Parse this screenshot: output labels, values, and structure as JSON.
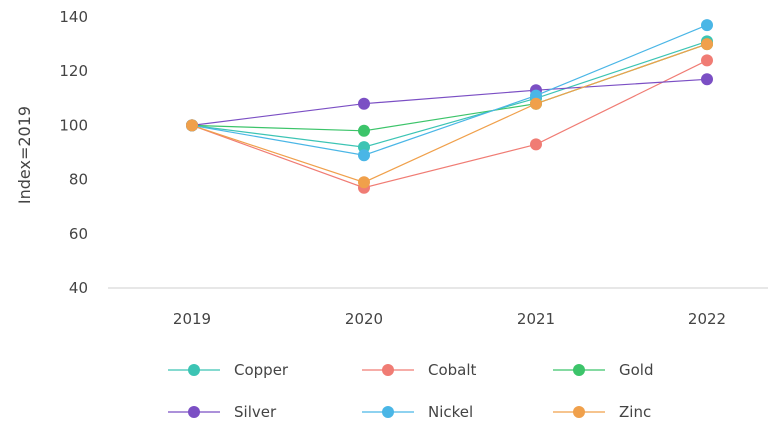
{
  "chart_data": {
    "type": "line",
    "ylabel": "Index=2019",
    "xlabel": "",
    "categories": [
      "2019",
      "2020",
      "2021",
      "2022"
    ],
    "ylim": [
      40,
      140
    ],
    "yticks": [
      40,
      60,
      80,
      100,
      120,
      140
    ],
    "grid": false,
    "legend_position": "bottom",
    "series": [
      {
        "name": "Copper",
        "color": "#3cc4b4",
        "values": [
          100,
          92,
          110,
          131
        ]
      },
      {
        "name": "Cobalt",
        "color": "#f07c74",
        "values": [
          100,
          77,
          93,
          124
        ]
      },
      {
        "name": "Gold",
        "color": "#3cc46a",
        "values": [
          100,
          98,
          108,
          130
        ]
      },
      {
        "name": "Silver",
        "color": "#7b4fc4",
        "values": [
          100,
          108,
          113,
          117
        ]
      },
      {
        "name": "Nickel",
        "color": "#4ab6e6",
        "values": [
          100,
          89,
          111,
          137
        ]
      },
      {
        "name": "Zinc",
        "color": "#f0a04b",
        "values": [
          100,
          79,
          108,
          130
        ]
      }
    ]
  }
}
